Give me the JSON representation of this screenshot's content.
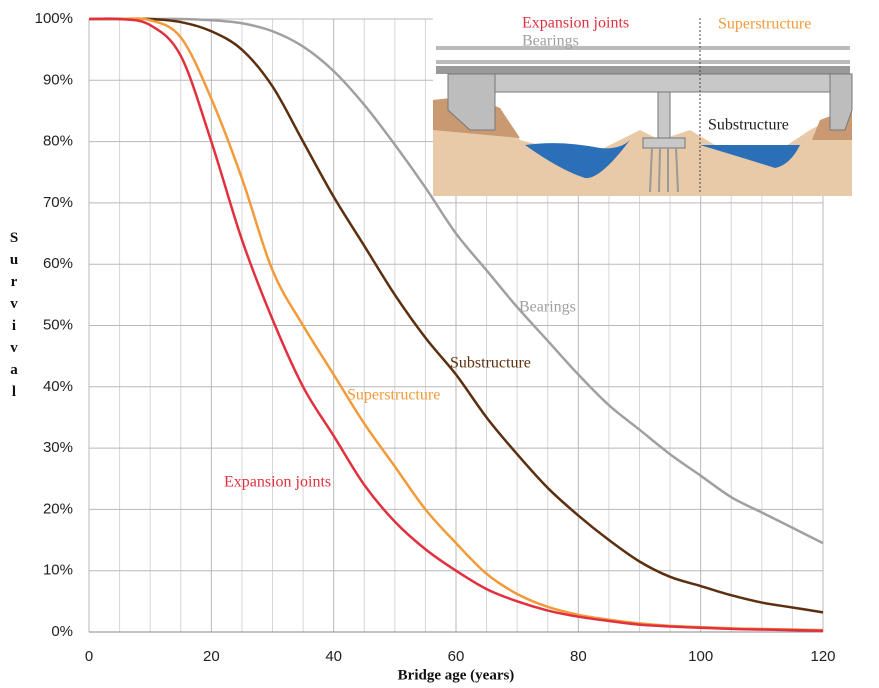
{
  "chart_data": {
    "type": "line",
    "x_label": "Bridge age (years)",
    "y_label": "Survival",
    "x": [
      0,
      5,
      10,
      15,
      20,
      25,
      30,
      35,
      40,
      45,
      50,
      55,
      60,
      65,
      70,
      75,
      80,
      85,
      90,
      95,
      100,
      105,
      110,
      115,
      120
    ],
    "xlim": [
      0,
      120
    ],
    "xticks": [
      0,
      20,
      40,
      60,
      80,
      100,
      120
    ],
    "xminor_ticks": [
      5,
      10,
      15,
      25,
      30,
      35,
      45,
      50,
      55,
      65,
      70,
      75,
      85,
      90,
      95,
      105,
      110,
      115
    ],
    "ylim": [
      0,
      100
    ],
    "yticks": [
      {
        "value": 0,
        "label": "0%"
      },
      {
        "value": 10,
        "label": "10%"
      },
      {
        "value": 20,
        "label": "20%"
      },
      {
        "value": 30,
        "label": "30%"
      },
      {
        "value": 40,
        "label": "40%"
      },
      {
        "value": 50,
        "label": "50%"
      },
      {
        "value": 60,
        "label": "60%"
      },
      {
        "value": 70,
        "label": "70%"
      },
      {
        "value": 80,
        "label": "80%"
      },
      {
        "value": 90,
        "label": "90%"
      },
      {
        "value": 100,
        "label": "100%"
      }
    ],
    "grid": true,
    "series": [
      {
        "name": "Bearings",
        "color": "#a0a0a0",
        "values": [
          100,
          100,
          100,
          100,
          99.8,
          99.3,
          98,
          95.5,
          91.5,
          86,
          79.5,
          72.5,
          65,
          59,
          53,
          47.5,
          42,
          37,
          33,
          29,
          25.5,
          22,
          19.5,
          17,
          14.5
        ]
      },
      {
        "name": "Substructure",
        "color": "#5c2f0e",
        "values": [
          100,
          100,
          100,
          99.5,
          98,
          95,
          89,
          80,
          71,
          63,
          55,
          48,
          42,
          35,
          29,
          23.5,
          19,
          15,
          11.5,
          9,
          7.5,
          6,
          4.8,
          4,
          3.2
        ]
      },
      {
        "name": "Superstructure",
        "color": "#f39a3a",
        "values": [
          100,
          100,
          99.8,
          97,
          87,
          74,
          59,
          50,
          42,
          34,
          27,
          20,
          14.5,
          9.5,
          6.2,
          4.1,
          2.8,
          2,
          1.4,
          1,
          0.8,
          0.6,
          0.5,
          0.4,
          0.3
        ]
      },
      {
        "name": "Expansion joints",
        "color": "#e2303e",
        "values": [
          100,
          100,
          99,
          94,
          80,
          64,
          51,
          40,
          32,
          24,
          18,
          13.5,
          10,
          7,
          5,
          3.5,
          2.5,
          1.8,
          1.2,
          0.9,
          0.7,
          0.5,
          0.4,
          0.3,
          0.2
        ]
      }
    ]
  }
}
